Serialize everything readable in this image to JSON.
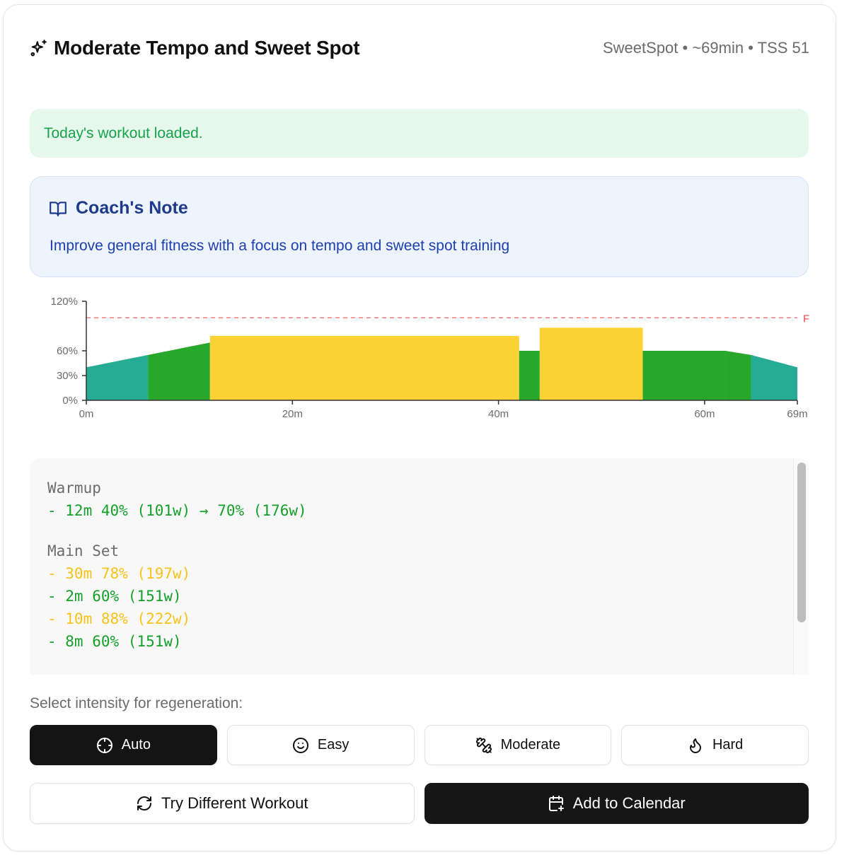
{
  "header": {
    "title": "Moderate Tempo and Sweet Spot",
    "title_icon": "sparkles-icon",
    "meta": "SweetSpot • ~69min • TSS 51"
  },
  "alert": {
    "message": "Today's workout loaded.",
    "color": "#16a34a"
  },
  "coach_note": {
    "icon": "book-open-icon",
    "title": "Coach's Note",
    "body": "Improve general fitness with a focus on tempo and sweet spot training"
  },
  "chart_data": {
    "type": "area",
    "title": "",
    "xlabel": "",
    "ylabel": "",
    "x_unit": "minutes",
    "xlim": [
      0,
      69
    ],
    "ylim": [
      0,
      120
    ],
    "x_ticks": [
      "0m",
      "20m",
      "40m",
      "60m",
      "69m"
    ],
    "x_tick_values": [
      0,
      20,
      40,
      60,
      69
    ],
    "y_ticks": [
      "0%",
      "30%",
      "60%",
      "120%"
    ],
    "y_tick_values": [
      0,
      30,
      60,
      120
    ],
    "grid": false,
    "reference_line": {
      "label": "F",
      "value": 100,
      "color": "#ef4444",
      "style": "dashed"
    },
    "segments": [
      {
        "start": 0,
        "end": 6,
        "from": 40,
        "to": 55,
        "color": "#26ab94",
        "zone": "recovery"
      },
      {
        "start": 6,
        "end": 12,
        "from": 55,
        "to": 70,
        "color": "#27a82b",
        "zone": "endurance"
      },
      {
        "start": 12,
        "end": 42,
        "from": 78,
        "to": 78,
        "color": "#fdd235",
        "zone": "tempo"
      },
      {
        "start": 42,
        "end": 44,
        "from": 60,
        "to": 60,
        "color": "#27a82b",
        "zone": "endurance"
      },
      {
        "start": 44,
        "end": 54,
        "from": 88,
        "to": 88,
        "color": "#fdd235",
        "zone": "sweetspot"
      },
      {
        "start": 54,
        "end": 62,
        "from": 60,
        "to": 60,
        "color": "#27a82b",
        "zone": "endurance"
      },
      {
        "start": 62,
        "end": 64.5,
        "from": 60,
        "to": 55,
        "color": "#27a82b",
        "zone": "endurance"
      },
      {
        "start": 64.5,
        "end": 69,
        "from": 55,
        "to": 40,
        "color": "#26ab94",
        "zone": "recovery"
      }
    ]
  },
  "steps": {
    "sections": [
      {
        "title": "Warmup",
        "lines": [
          {
            "text": "- 12m 40% (101w) → 70% (176w)",
            "color": "green"
          }
        ]
      },
      {
        "title": "Main Set",
        "lines": [
          {
            "text": "- 30m 78% (197w)",
            "color": "yellow"
          },
          {
            "text": "- 2m 60% (151w)",
            "color": "green"
          },
          {
            "text": "- 10m 88% (222w)",
            "color": "yellow"
          },
          {
            "text": "- 8m 60% (151w)",
            "color": "green"
          }
        ]
      }
    ]
  },
  "intensity": {
    "label": "Select intensity for regeneration:",
    "options": [
      {
        "label": "Auto",
        "icon": "crosshair-icon",
        "selected": true
      },
      {
        "label": "Easy",
        "icon": "smile-icon",
        "selected": false
      },
      {
        "label": "Moderate",
        "icon": "dumbbell-icon",
        "selected": false
      },
      {
        "label": "Hard",
        "icon": "flame-icon",
        "selected": false
      }
    ]
  },
  "actions": {
    "try_different": "Try Different Workout",
    "add_calendar": "Add to Calendar"
  }
}
